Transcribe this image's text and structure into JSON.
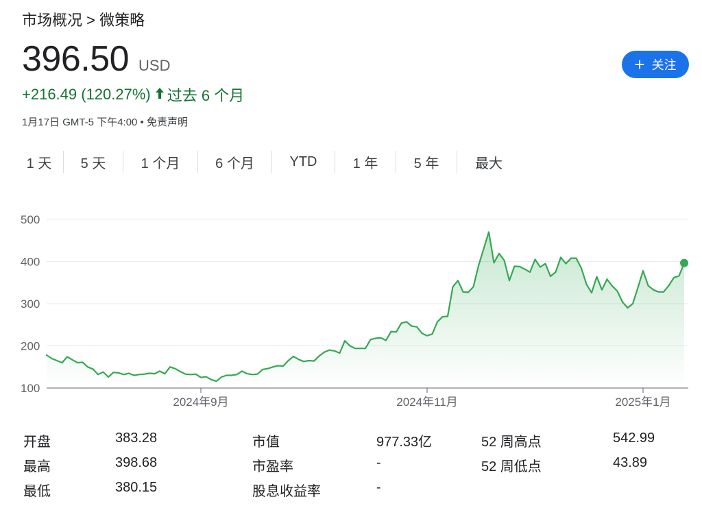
{
  "breadcrumb": "市场概况 > 微策略",
  "price": "396.50",
  "currency": "USD",
  "follow_label": "关注",
  "change": "+216.49 (120.27%)",
  "change_period": "过去 6 个月",
  "timestamp": "1月17日 GMT-5 下午4:00 • 免责声明",
  "tabs": [
    {
      "label": "1 天"
    },
    {
      "label": "5 天"
    },
    {
      "label": "1 个月"
    },
    {
      "label": "6 个月"
    },
    {
      "label": "YTD"
    },
    {
      "label": "1 年"
    },
    {
      "label": "5 年"
    },
    {
      "label": "最大"
    }
  ],
  "active_tab": 3,
  "colors": {
    "accent": "#1a73e8",
    "line": "#34a853",
    "positive": "#137333"
  },
  "chart_data": {
    "type": "area",
    "y_ticks": [
      100,
      200,
      300,
      400,
      500
    ],
    "ylim": [
      100,
      500
    ],
    "x_tick_labels": [
      "2024年9月",
      "2024年11月",
      "2025年1月"
    ],
    "x_tick_index": [
      30,
      74,
      116
    ],
    "grid": true,
    "values": [
      178,
      170,
      165,
      160,
      174,
      167,
      160,
      161,
      150,
      145,
      132,
      138,
      126,
      137,
      136,
      132,
      135,
      130,
      132,
      133,
      135,
      134,
      140,
      134,
      150,
      146,
      139,
      133,
      132,
      133,
      125,
      127,
      120,
      116,
      126,
      130,
      130,
      132,
      140,
      134,
      132,
      133,
      144,
      146,
      150,
      153,
      152,
      165,
      175,
      168,
      163,
      165,
      164,
      176,
      185,
      190,
      188,
      183,
      212,
      200,
      194,
      194,
      194,
      215,
      218,
      219,
      213,
      234,
      233,
      254,
      257,
      247,
      245,
      230,
      224,
      228,
      257,
      269,
      270,
      340,
      355,
      328,
      327,
      340,
      390,
      430,
      470,
      397,
      419,
      403,
      355,
      389,
      388,
      382,
      375,
      405,
      387,
      395,
      365,
      375,
      410,
      395,
      408,
      408,
      384,
      346,
      326,
      364,
      333,
      358,
      342,
      330,
      304,
      290,
      300,
      338,
      378,
      343,
      333,
      328,
      328,
      343,
      362,
      366,
      396.5
    ]
  },
  "stats": [
    {
      "label": "开盘",
      "value": "383.28"
    },
    {
      "label": "最高",
      "value": "398.68"
    },
    {
      "label": "最低",
      "value": "380.15"
    },
    {
      "label": "市值",
      "value": "977.33亿"
    },
    {
      "label": "市盈率",
      "value": "-"
    },
    {
      "label": "股息收益率",
      "value": "-"
    },
    {
      "label": "52 周高点",
      "value": "542.99"
    },
    {
      "label": "52 周低点",
      "value": "43.89"
    }
  ]
}
